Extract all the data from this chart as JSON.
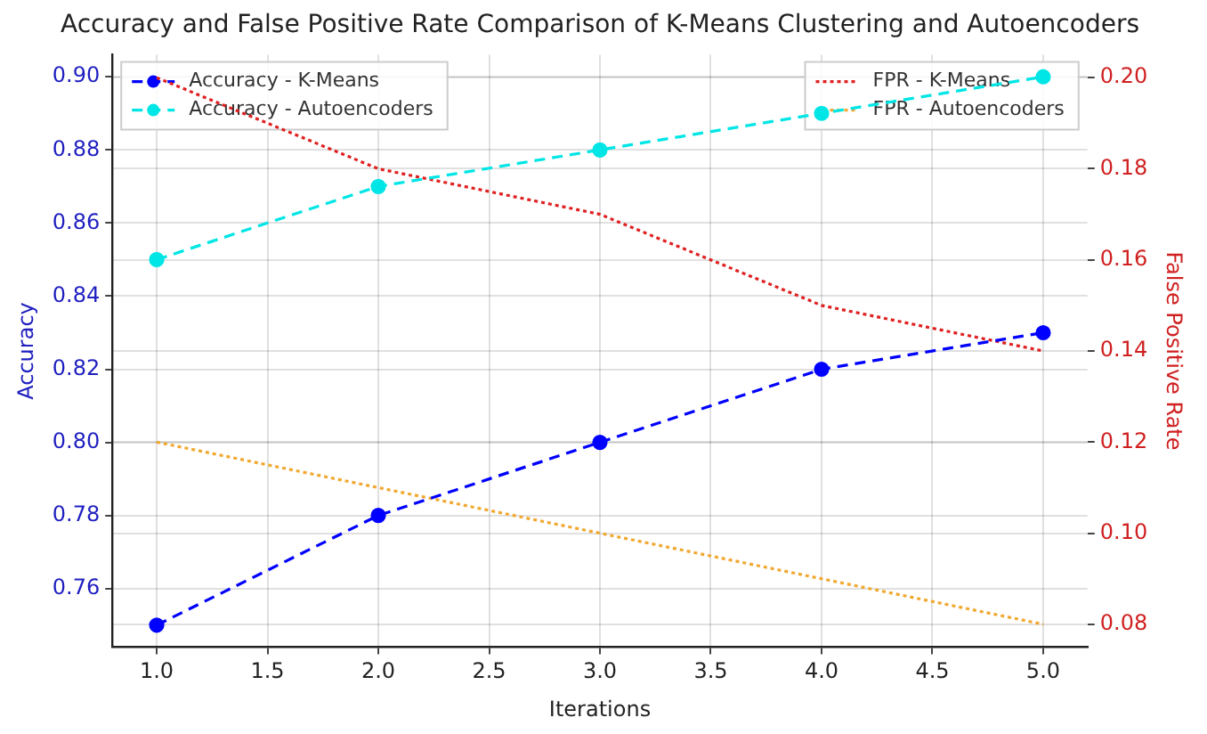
{
  "chart_data": {
    "type": "line",
    "title": "Accuracy and False Positive Rate Comparison of K-Means Clustering and Autoencoders",
    "xlabel": "Iterations",
    "ylabel": "Accuracy",
    "y2label": "False Positive Rate",
    "x": [
      1,
      2,
      3,
      4,
      5
    ],
    "series": [
      {
        "name": "Accuracy - K-Means",
        "color": "#0000ff",
        "values": [
          0.75,
          0.78,
          0.8,
          0.82,
          0.83
        ],
        "marker": "circle",
        "line_style": "dashed"
      },
      {
        "name": "Accuracy - Autoencoders",
        "color": "#00e5e5",
        "values": [
          0.85,
          0.87,
          0.88,
          0.89,
          0.9
        ],
        "marker": "circle",
        "line_style": "dashed"
      },
      {
        "name": "FPR - K-Means",
        "color": "#e02020",
        "values": [
          0.2,
          0.18,
          0.17,
          0.15,
          0.14
        ],
        "marker": "none",
        "line_style": "dotted",
        "axis": "y2"
      },
      {
        "name": "FPR - Autoencoders",
        "color": "#f0a830",
        "values": [
          0.12,
          0.11,
          0.1,
          0.09,
          0.08
        ],
        "marker": "none",
        "line_style": "dotted",
        "axis": "y2"
      }
    ],
    "xlim": [
      0.8,
      5.2
    ],
    "xticks": [
      {
        "value": 1,
        "label": "1.0"
      },
      {
        "value": 1.5,
        "label": "1.5"
      },
      {
        "value": 2,
        "label": "2.0"
      },
      {
        "value": 2.5,
        "label": "2.5"
      },
      {
        "value": 3,
        "label": "3.0"
      },
      {
        "value": 3.5,
        "label": "3.5"
      },
      {
        "value": 4,
        "label": "4.0"
      },
      {
        "value": 4.5,
        "label": "4.5"
      },
      {
        "value": 5,
        "label": "5.0"
      }
    ],
    "ylim": [
      0.744,
      0.906
    ],
    "yticks": [
      {
        "value": 0.76,
        "label": "0.76"
      },
      {
        "value": 0.78,
        "label": "0.78"
      },
      {
        "value": 0.8,
        "label": "0.80"
      },
      {
        "value": 0.82,
        "label": "0.82"
      },
      {
        "value": 0.84,
        "label": "0.84"
      },
      {
        "value": 0.86,
        "label": "0.86"
      },
      {
        "value": 0.88,
        "label": "0.88"
      },
      {
        "value": 0.9,
        "label": "0.90"
      }
    ],
    "y2lim": [
      0.075,
      0.205
    ],
    "y2ticks": [
      {
        "value": 0.08,
        "label": "0.08"
      },
      {
        "value": 0.1,
        "label": "0.10"
      },
      {
        "value": 0.12,
        "label": "0.12"
      },
      {
        "value": 0.14,
        "label": "0.14"
      },
      {
        "value": 0.16,
        "label": "0.16"
      },
      {
        "value": 0.18,
        "label": "0.18"
      },
      {
        "value": 0.2,
        "label": "0.20"
      }
    ],
    "grid": true,
    "legend": "top"
  }
}
